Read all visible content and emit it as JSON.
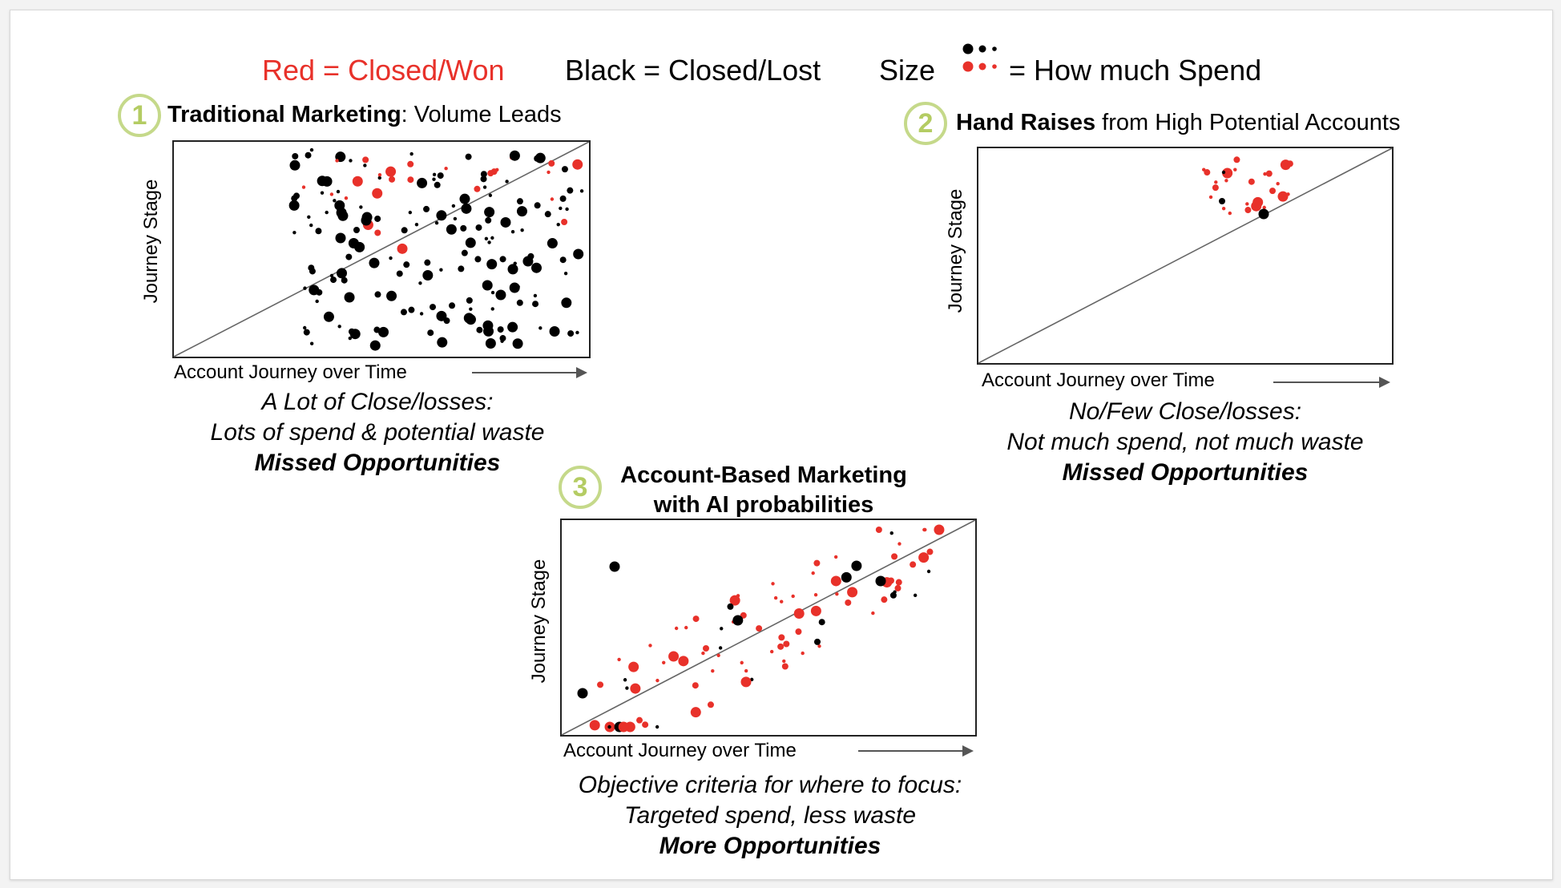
{
  "legend": {
    "red_label": "Red = Closed/Won",
    "black_label": "Black = Closed/Lost",
    "size_prefix": "Size",
    "size_suffix": "= How much Spend"
  },
  "colors": {
    "won": "#e8312a",
    "lost": "#000000",
    "badge": "#c5d98a",
    "diagonal": "#666666"
  },
  "panels": [
    {
      "number": "1",
      "title_bold": "Traditional Marketing",
      "title_rest": ": Volume Leads",
      "y_label": "Journey Stage",
      "x_label": "Account Journey over Time",
      "caption": [
        "A Lot of Close/losses:",
        "Lots of spend & potential waste",
        "Missed Opportunities"
      ]
    },
    {
      "number": "2",
      "title_bold": "Hand Raises",
      "title_rest": " from High Potential Accounts",
      "y_label": "Journey Stage",
      "x_label": "Account Journey over Time",
      "caption": [
        "No/Few Close/losses:",
        "Not much spend, not much waste",
        "Missed Opportunities"
      ]
    },
    {
      "number": "3",
      "title_line1": "Account-Based Marketing",
      "title_line2": "with AI probabilities",
      "y_label": "Journey Stage",
      "x_label": "Account Journey over Time",
      "caption": [
        "Objective criteria for where to focus:",
        "Targeted spend, less waste",
        "More Opportunities"
      ]
    }
  ]
}
